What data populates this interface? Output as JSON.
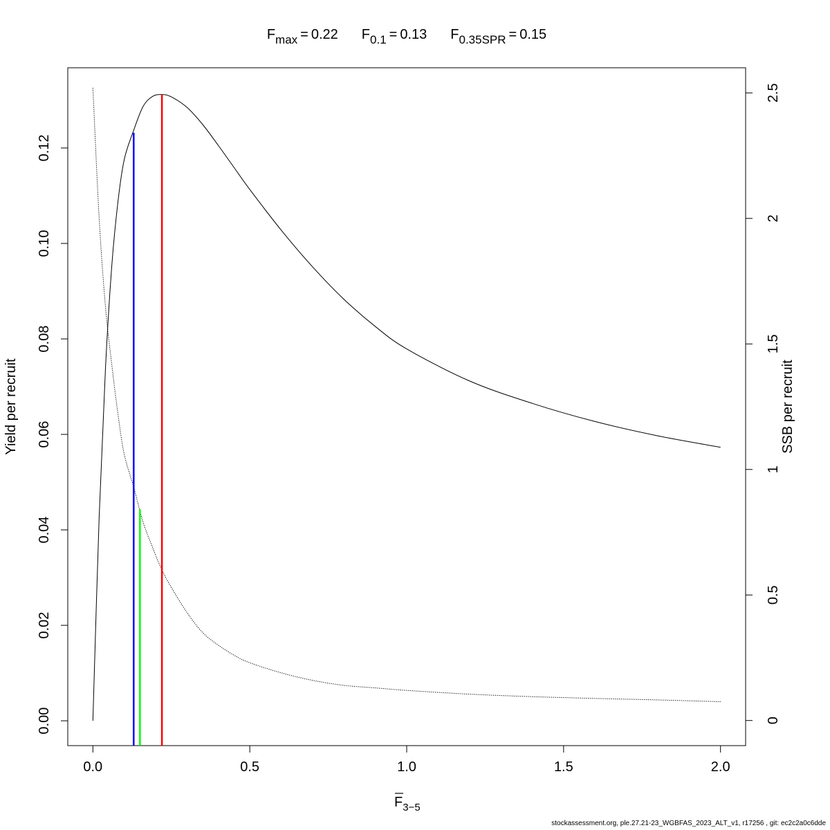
{
  "chart_data": {
    "type": "line",
    "title_parts": [
      {
        "label": "F",
        "sub": "max",
        "eq": "=",
        "value": "0.22"
      },
      {
        "label": "F",
        "sub": "0.1",
        "eq": "=",
        "value": "0.13"
      },
      {
        "label": "F",
        "sub": "0.35SPR",
        "eq": "=",
        "value": "0.15"
      }
    ],
    "xlabel": {
      "main": "F",
      "sub": "3−5",
      "overline": true
    },
    "ylabel_left": "Yield per recruit",
    "ylabel_right": "SSB per recruit",
    "xlim": [
      -0.08,
      2.08
    ],
    "ylim_left": [
      -0.0052,
      0.1368
    ],
    "ylim_right": [
      -0.1,
      2.6
    ],
    "x_ticks": [
      "0.0",
      "0.5",
      "1.0",
      "1.5",
      "2.0"
    ],
    "y_left_ticks": [
      "0.00",
      "0.02",
      "0.04",
      "0.06",
      "0.08",
      "0.10",
      "0.12"
    ],
    "y_right_ticks": [
      "0",
      "0.5",
      "1",
      "1.5",
      "2",
      "2.5"
    ],
    "series": [
      {
        "axis": "left",
        "style": "solid",
        "color": "#000000",
        "x": [
          0,
          0.02,
          0.04,
          0.06,
          0.08,
          0.1,
          0.13,
          0.16,
          0.19,
          0.22,
          0.25,
          0.3,
          0.35,
          0.4,
          0.45,
          0.5,
          0.6,
          0.7,
          0.8,
          0.9,
          1.0,
          1.2,
          1.4,
          1.6,
          1.8,
          2.0
        ],
        "values": [
          0,
          0.0427,
          0.0737,
          0.0951,
          0.1088,
          0.1176,
          0.1237,
          0.1287,
          0.1308,
          0.1312,
          0.1307,
          0.1285,
          0.1249,
          0.1205,
          0.1159,
          0.1113,
          0.1028,
          0.0951,
          0.0883,
          0.0826,
          0.0779,
          0.0712,
          0.0665,
          0.0627,
          0.0597,
          0.0573
        ]
      },
      {
        "axis": "right",
        "style": "dotted",
        "color": "#000000",
        "x": [
          0,
          0.02,
          0.04,
          0.06,
          0.08,
          0.1,
          0.13,
          0.16,
          0.19,
          0.22,
          0.25,
          0.3,
          0.35,
          0.4,
          0.45,
          0.5,
          0.6,
          0.7,
          0.8,
          0.9,
          1.0,
          1.2,
          1.4,
          1.6,
          1.8,
          2.0
        ],
        "values": [
          2.52,
          2.0,
          1.65,
          1.42,
          1.22,
          1.06,
          0.93,
          0.79,
          0.69,
          0.6,
          0.53,
          0.43,
          0.35,
          0.3,
          0.26,
          0.23,
          0.19,
          0.16,
          0.14,
          0.13,
          0.12,
          0.105,
          0.095,
          0.088,
          0.082,
          0.075
        ]
      }
    ],
    "reference_lines": [
      {
        "name": "Fmax",
        "x": 0.22,
        "y_left": 0.1312,
        "color": "#ff0000"
      },
      {
        "name": "F0.1",
        "x": 0.13,
        "y_left": 0.1232,
        "color": "#0000ff"
      },
      {
        "name": "F0.35SPR",
        "x": 0.15,
        "y_left": 0.0443,
        "color": "#00ff00"
      }
    ],
    "grid": false,
    "legend": "none"
  },
  "footer": "stockassessment.org, ple.27.21-23_WGBFAS_2023_ALT_v1, r17256 , git: ec2c2a0c6dde"
}
